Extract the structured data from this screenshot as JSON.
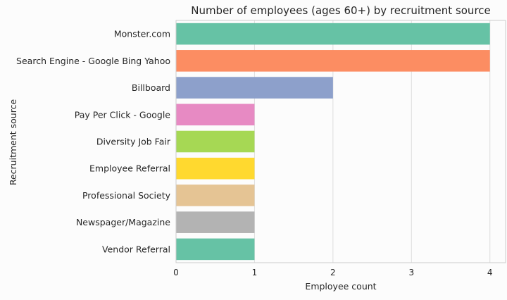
{
  "chart_data": {
    "type": "bar",
    "orientation": "horizontal",
    "title": "Number of employees (ages 60+) by recruitment source",
    "xlabel": "Employee count",
    "ylabel": "Recruitment source",
    "xlim": [
      0,
      4.2
    ],
    "xticks": [
      "0",
      "1",
      "2",
      "3",
      "4"
    ],
    "grid": true,
    "categories": [
      "Monster.com",
      "Search Engine - Google Bing Yahoo",
      "Billboard",
      "Pay Per Click - Google",
      "Diversity Job Fair",
      "Employee Referral",
      "Professional Society",
      "Newspager/Magazine",
      "Vendor Referral"
    ],
    "values": [
      4,
      4,
      2,
      1,
      1,
      1,
      1,
      1,
      1
    ],
    "colors": [
      "#66c2a5",
      "#fc8d62",
      "#8da0cb",
      "#e78ac3",
      "#a6d854",
      "#ffd92f",
      "#e5c494",
      "#b3b3b3",
      "#66c2a5"
    ]
  }
}
